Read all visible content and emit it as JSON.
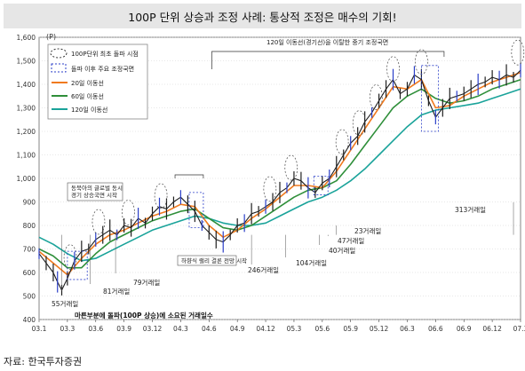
{
  "title": "100P 단위 상승과 조정 사례: 통상적 조정은 매수의 기회!",
  "source": "자료: 한국투자증권",
  "colors": {
    "price": "#1f1f1f",
    "ma20": "#f07a1e",
    "ma60": "#2f8f3a",
    "ma120": "#1aa39a",
    "marker": "#2b3fc8",
    "axis": "#444444",
    "grid": "#bfbfbf"
  },
  "legend": {
    "items": [
      {
        "label": "100P단위 최초 돌파 시점",
        "kind": "dashed-ellipse"
      },
      {
        "label": "돌파 이후 주요 조정국면",
        "kind": "dashed-rect"
      },
      {
        "label": "20일 이동선",
        "kind": "line",
        "color_key": "ma20"
      },
      {
        "label": "60일 이동선",
        "kind": "line",
        "color_key": "ma60"
      },
      {
        "label": "120일 이동선",
        "kind": "line",
        "color_key": "ma120"
      }
    ]
  },
  "annotations": {
    "ma120_break": "120일 이동선(경기선)을 이탈한 중기 조정국면",
    "early_gap": [
      "동북아의 글로벌 동시",
      "경기 상승국면 시작"
    ],
    "mid_break": "하향식 랠리 결론 전망 시작",
    "footnote": "마른부분에 돌파(100P 상승)에 소요된 거래일수",
    "day_counts": [
      "55거래일",
      "81거래일",
      "79거래일",
      "246거래일",
      "104거래일",
      "40거래일",
      "47거래일",
      "23거래일",
      "313거래일"
    ]
  },
  "chart_data": {
    "type": "line",
    "y_unit": "(P)",
    "ylim": [
      400,
      1600
    ],
    "yticks": [
      400,
      500,
      600,
      700,
      800,
      900,
      "1,000",
      "1,100",
      "1,200",
      "1,300",
      "1,400",
      "1,500",
      "1,600"
    ],
    "xticks": [
      "03.1",
      "03.3",
      "03.6",
      "03.9",
      "03.12",
      "04.3",
      "04.6",
      "04.9",
      "04.12",
      "05.3",
      "05.6",
      "05.9",
      "05.12",
      "06.3",
      "06.6",
      "06.9",
      "06.12",
      "07.3"
    ],
    "price": [
      [
        0,
        680
      ],
      [
        0.5,
        640
      ],
      [
        1,
        600
      ],
      [
        1.3,
        560
      ],
      [
        1.6,
        525
      ],
      [
        2,
        575
      ],
      [
        2.5,
        650
      ],
      [
        3,
        690
      ],
      [
        3.5,
        700
      ],
      [
        4,
        740
      ],
      [
        4.5,
        760
      ],
      [
        5,
        780
      ],
      [
        5.5,
        760
      ],
      [
        6,
        800
      ],
      [
        6.5,
        790
      ],
      [
        7,
        830
      ],
      [
        7.5,
        810
      ],
      [
        8,
        850
      ],
      [
        8.5,
        880
      ],
      [
        9,
        870
      ],
      [
        9.5,
        900
      ],
      [
        10,
        920
      ],
      [
        10.5,
        890
      ],
      [
        11,
        860
      ],
      [
        11.5,
        800
      ],
      [
        12,
        770
      ],
      [
        12.5,
        740
      ],
      [
        13,
        730
      ],
      [
        13.5,
        760
      ],
      [
        14,
        800
      ],
      [
        14.5,
        810
      ],
      [
        15,
        850
      ],
      [
        15.5,
        860
      ],
      [
        16,
        880
      ],
      [
        16.5,
        900
      ],
      [
        17,
        940
      ],
      [
        17.5,
        960
      ],
      [
        18,
        1000
      ],
      [
        18.5,
        990
      ],
      [
        19,
        960
      ],
      [
        19.5,
        940
      ],
      [
        20,
        980
      ],
      [
        20.5,
        1000
      ],
      [
        21,
        1050
      ],
      [
        21.5,
        1100
      ],
      [
        22,
        1150
      ],
      [
        22.5,
        1180
      ],
      [
        23,
        1240
      ],
      [
        23.5,
        1280
      ],
      [
        24,
        1330
      ],
      [
        24.5,
        1380
      ],
      [
        25,
        1420
      ],
      [
        25.5,
        1360
      ],
      [
        26,
        1380
      ],
      [
        26.5,
        1440
      ],
      [
        27,
        1420
      ],
      [
        27.5,
        1330
      ],
      [
        28,
        1260
      ],
      [
        28.5,
        1300
      ],
      [
        29,
        1340
      ],
      [
        29.5,
        1350
      ],
      [
        30,
        1360
      ],
      [
        30.5,
        1380
      ],
      [
        31,
        1400
      ],
      [
        31.5,
        1410
      ],
      [
        32,
        1430
      ],
      [
        32.5,
        1420
      ],
      [
        33,
        1440
      ],
      [
        33.5,
        1430
      ],
      [
        34,
        1460
      ]
    ],
    "ma20": [
      [
        0,
        690
      ],
      [
        1,
        640
      ],
      [
        2,
        590
      ],
      [
        3,
        660
      ],
      [
        4,
        720
      ],
      [
        5,
        760
      ],
      [
        6,
        780
      ],
      [
        7,
        810
      ],
      [
        8,
        840
      ],
      [
        9,
        860
      ],
      [
        10,
        890
      ],
      [
        11,
        880
      ],
      [
        12,
        800
      ],
      [
        13,
        750
      ],
      [
        14,
        780
      ],
      [
        15,
        830
      ],
      [
        16,
        870
      ],
      [
        17,
        920
      ],
      [
        18,
        970
      ],
      [
        19,
        970
      ],
      [
        20,
        960
      ],
      [
        21,
        1030
      ],
      [
        22,
        1120
      ],
      [
        23,
        1210
      ],
      [
        24,
        1300
      ],
      [
        25,
        1390
      ],
      [
        26,
        1380
      ],
      [
        27,
        1420
      ],
      [
        28,
        1300
      ],
      [
        29,
        1310
      ],
      [
        30,
        1350
      ],
      [
        31,
        1380
      ],
      [
        32,
        1410
      ],
      [
        33,
        1430
      ],
      [
        34,
        1450
      ]
    ],
    "ma60": [
      [
        0,
        700
      ],
      [
        1,
        670
      ],
      [
        2,
        620
      ],
      [
        3,
        620
      ],
      [
        4,
        680
      ],
      [
        5,
        730
      ],
      [
        6,
        760
      ],
      [
        7,
        790
      ],
      [
        8,
        820
      ],
      [
        9,
        840
      ],
      [
        10,
        860
      ],
      [
        11,
        870
      ],
      [
        12,
        830
      ],
      [
        13,
        790
      ],
      [
        14,
        780
      ],
      [
        15,
        800
      ],
      [
        16,
        840
      ],
      [
        17,
        880
      ],
      [
        18,
        920
      ],
      [
        19,
        950
      ],
      [
        20,
        960
      ],
      [
        21,
        990
      ],
      [
        22,
        1060
      ],
      [
        23,
        1140
      ],
      [
        24,
        1220
      ],
      [
        25,
        1300
      ],
      [
        26,
        1350
      ],
      [
        27,
        1380
      ],
      [
        28,
        1340
      ],
      [
        29,
        1320
      ],
      [
        30,
        1330
      ],
      [
        31,
        1350
      ],
      [
        32,
        1380
      ],
      [
        33,
        1400
      ],
      [
        34,
        1420
      ]
    ],
    "ma120": [
      [
        0,
        750
      ],
      [
        1,
        720
      ],
      [
        2,
        680
      ],
      [
        3,
        650
      ],
      [
        4,
        660
      ],
      [
        5,
        690
      ],
      [
        6,
        720
      ],
      [
        7,
        750
      ],
      [
        8,
        780
      ],
      [
        9,
        800
      ],
      [
        10,
        820
      ],
      [
        11,
        840
      ],
      [
        12,
        830
      ],
      [
        13,
        810
      ],
      [
        14,
        800
      ],
      [
        15,
        800
      ],
      [
        16,
        810
      ],
      [
        17,
        840
      ],
      [
        18,
        870
      ],
      [
        19,
        900
      ],
      [
        20,
        920
      ],
      [
        21,
        950
      ],
      [
        22,
        990
      ],
      [
        23,
        1040
      ],
      [
        24,
        1100
      ],
      [
        25,
        1160
      ],
      [
        26,
        1220
      ],
      [
        27,
        1270
      ],
      [
        28,
        1290
      ],
      [
        29,
        1300
      ],
      [
        30,
        1310
      ],
      [
        31,
        1320
      ],
      [
        32,
        1340
      ],
      [
        33,
        1360
      ],
      [
        34,
        1380
      ]
    ]
  }
}
